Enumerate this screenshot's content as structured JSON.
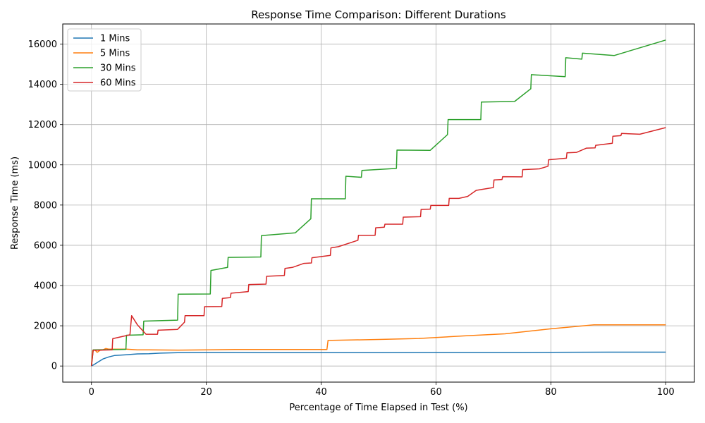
{
  "chart_data": {
    "type": "line",
    "title": "Response Time Comparison: Different Durations",
    "xlabel": "Percentage of Time Elapsed in Test (%)",
    "ylabel": "Response Time (ms)",
    "xlim": [
      -5,
      105
    ],
    "ylim": [
      -800,
      17000
    ],
    "xticks": [
      0,
      20,
      40,
      60,
      80,
      100
    ],
    "yticks": [
      0,
      2000,
      4000,
      6000,
      8000,
      10000,
      12000,
      14000,
      16000
    ],
    "grid": true,
    "legend_position": "top-left",
    "series": [
      {
        "name": "1 Mins",
        "color": "#1f77b4",
        "points": [
          [
            0,
            0
          ],
          [
            0.5,
            80
          ],
          [
            1,
            170
          ],
          [
            2,
            350
          ],
          [
            3,
            450
          ],
          [
            4,
            520
          ],
          [
            6,
            560
          ],
          [
            8,
            600
          ],
          [
            10,
            610
          ],
          [
            12,
            640
          ],
          [
            15,
            660
          ],
          [
            20,
            670
          ],
          [
            25,
            670
          ],
          [
            30,
            660
          ],
          [
            40,
            660
          ],
          [
            50,
            660
          ],
          [
            60,
            670
          ],
          [
            70,
            670
          ],
          [
            75,
            670
          ],
          [
            80,
            680
          ],
          [
            90,
            690
          ],
          [
            100,
            690
          ]
        ]
      },
      {
        "name": "5 Mins",
        "color": "#ff7f0e",
        "points": [
          [
            0,
            0
          ],
          [
            0.2,
            780
          ],
          [
            0.6,
            800
          ],
          [
            1,
            680
          ],
          [
            1.5,
            780
          ],
          [
            2,
            800
          ],
          [
            2.5,
            870
          ],
          [
            3,
            840
          ],
          [
            4,
            840
          ],
          [
            6,
            840
          ],
          [
            8,
            800
          ],
          [
            10,
            800
          ],
          [
            15,
            790
          ],
          [
            20,
            800
          ],
          [
            25,
            820
          ],
          [
            30,
            820
          ],
          [
            41,
            820
          ],
          [
            41.2,
            1270
          ],
          [
            50,
            1320
          ],
          [
            57,
            1370
          ],
          [
            65,
            1500
          ],
          [
            72,
            1600
          ],
          [
            80,
            1850
          ],
          [
            87.5,
            2050
          ],
          [
            90,
            2050
          ],
          [
            100,
            2050
          ]
        ]
      },
      {
        "name": "30 Mins",
        "color": "#2ca02c",
        "points": [
          [
            0,
            0
          ],
          [
            0.3,
            800
          ],
          [
            5,
            820
          ],
          [
            6,
            830
          ],
          [
            6.1,
            1530
          ],
          [
            9,
            1550
          ],
          [
            9.1,
            2230
          ],
          [
            15,
            2280
          ],
          [
            15.1,
            3570
          ],
          [
            20.7,
            3580
          ],
          [
            20.8,
            4750
          ],
          [
            23.7,
            4900
          ],
          [
            23.8,
            5400
          ],
          [
            29.5,
            5420
          ],
          [
            29.6,
            6480
          ],
          [
            35.5,
            6620
          ],
          [
            38.2,
            7320
          ],
          [
            38.3,
            8310
          ],
          [
            44.2,
            8310
          ],
          [
            44.3,
            9430
          ],
          [
            47,
            9380
          ],
          [
            47.1,
            9720
          ],
          [
            53.1,
            9820
          ],
          [
            53.2,
            10730
          ],
          [
            59,
            10720
          ],
          [
            62,
            11500
          ],
          [
            62.1,
            12250
          ],
          [
            67.8,
            12250
          ],
          [
            67.9,
            13120
          ],
          [
            73.7,
            13150
          ],
          [
            76.5,
            13780
          ],
          [
            76.6,
            14480
          ],
          [
            82.5,
            14380
          ],
          [
            82.6,
            15320
          ],
          [
            85.4,
            15250
          ],
          [
            85.5,
            15550
          ],
          [
            91,
            15430
          ],
          [
            100,
            16200
          ]
        ]
      },
      {
        "name": "60 Mins",
        "color": "#d62728",
        "points": [
          [
            0,
            0
          ],
          [
            0.3,
            780
          ],
          [
            3.6,
            800
          ],
          [
            3.7,
            1360
          ],
          [
            6.7,
            1550
          ],
          [
            7,
            2500
          ],
          [
            8,
            2050
          ],
          [
            9.5,
            1580
          ],
          [
            11.5,
            1580
          ],
          [
            11.6,
            1780
          ],
          [
            15,
            1820
          ],
          [
            16.2,
            2180
          ],
          [
            16.3,
            2500
          ],
          [
            19.6,
            2500
          ],
          [
            19.7,
            2950
          ],
          [
            22.7,
            2960
          ],
          [
            22.8,
            3360
          ],
          [
            24.2,
            3400
          ],
          [
            24.3,
            3620
          ],
          [
            27.3,
            3700
          ],
          [
            27.4,
            4050
          ],
          [
            30.4,
            4070
          ],
          [
            30.5,
            4460
          ],
          [
            33.6,
            4500
          ],
          [
            33.7,
            4850
          ],
          [
            35,
            4900
          ],
          [
            37,
            5100
          ],
          [
            38.3,
            5120
          ],
          [
            38.4,
            5380
          ],
          [
            41.6,
            5500
          ],
          [
            41.7,
            5870
          ],
          [
            43,
            5930
          ],
          [
            46.4,
            6250
          ],
          [
            46.5,
            6500
          ],
          [
            49.4,
            6500
          ],
          [
            49.5,
            6870
          ],
          [
            51,
            6900
          ],
          [
            51.1,
            7050
          ],
          [
            54.2,
            7050
          ],
          [
            54.3,
            7400
          ],
          [
            57.3,
            7420
          ],
          [
            57.4,
            7780
          ],
          [
            59,
            7800
          ],
          [
            59.1,
            7980
          ],
          [
            62.2,
            7980
          ],
          [
            62.3,
            8330
          ],
          [
            64,
            8330
          ],
          [
            65.5,
            8430
          ],
          [
            67,
            8730
          ],
          [
            70,
            8870
          ],
          [
            70.1,
            9250
          ],
          [
            71.5,
            9270
          ],
          [
            71.6,
            9410
          ],
          [
            75,
            9400
          ],
          [
            75.1,
            9760
          ],
          [
            78,
            9800
          ],
          [
            79.5,
            9930
          ],
          [
            79.6,
            10250
          ],
          [
            82.7,
            10330
          ],
          [
            82.8,
            10600
          ],
          [
            84.5,
            10620
          ],
          [
            86.2,
            10830
          ],
          [
            87.7,
            10840
          ],
          [
            87.8,
            10970
          ],
          [
            90.7,
            11070
          ],
          [
            90.8,
            11420
          ],
          [
            92.2,
            11450
          ],
          [
            92.3,
            11560
          ],
          [
            95.5,
            11520
          ],
          [
            100,
            11850
          ]
        ]
      }
    ]
  }
}
